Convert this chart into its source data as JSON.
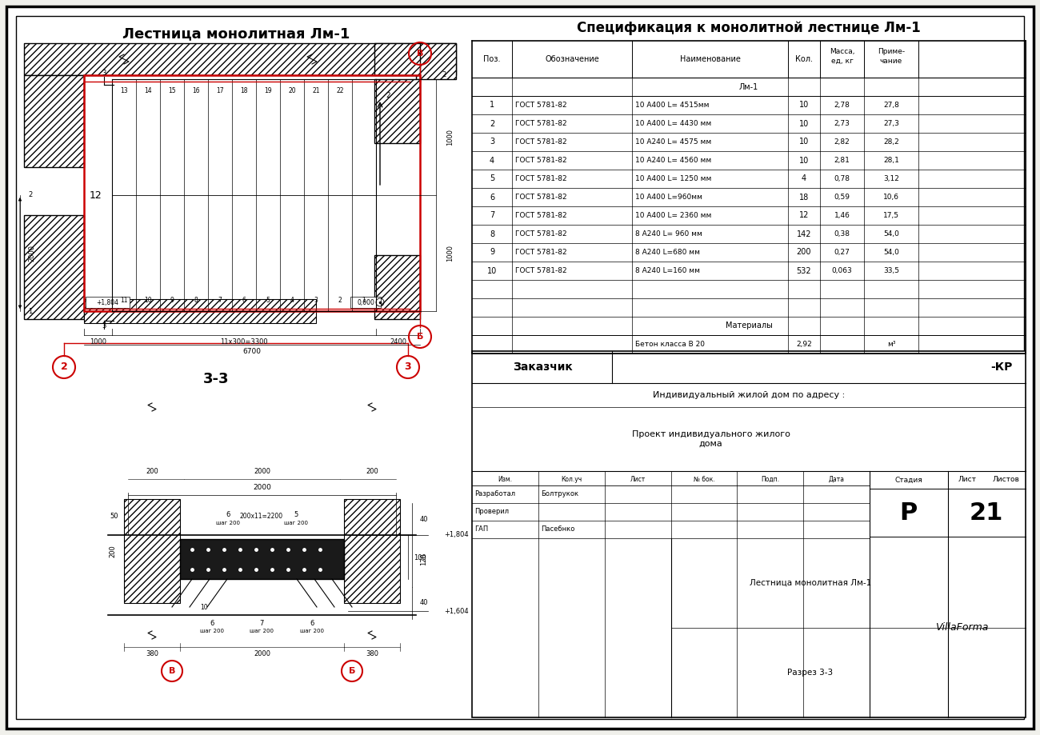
{
  "bg_color": "#f0f0eb",
  "white": "#ffffff",
  "black": "#000000",
  "red": "#cc0000",
  "gray_dark": "#2a2a2a",
  "title_lm1": "Лестница монолитная Лм-1",
  "title_spec": "Спецификация к монолитной лестнице Лм-1",
  "title_33": "3-3",
  "spec_rows": [
    [
      "1",
      "ГОСТ 5781-82",
      "10 А400 L= 4515мм",
      "10",
      "2,78",
      "27,8"
    ],
    [
      "2",
      "ГОСТ 5781-82",
      "10 А400 L= 4430 мм",
      "10",
      "2,73",
      "27,3"
    ],
    [
      "3",
      "ГОСТ 5781-82",
      "10 А240 L= 4575 мм",
      "10",
      "2,82",
      "28,2"
    ],
    [
      "4",
      "ГОСТ 5781-82",
      "10 А240 L= 4560 мм",
      "10",
      "2,81",
      "28,1"
    ],
    [
      "5",
      "ГОСТ 5781-82",
      "10 А400 L= 1250 мм",
      "4",
      "0,78",
      "3,12"
    ],
    [
      "6",
      "ГОСТ 5781-82",
      "10 А400 L=960мм",
      "18",
      "0,59",
      "10,6"
    ],
    [
      "7",
      "ГОСТ 5781-82",
      "10 А400 L= 2360 мм",
      "12",
      "1,46",
      "17,5"
    ],
    [
      "8",
      "ГОСТ 5781-82",
      "8 А240 L= 960 мм",
      "142",
      "0,38",
      "54,0"
    ],
    [
      "9",
      "ГОСТ 5781-82",
      "8 А240 L=680 мм",
      "200",
      "0,27",
      "54,0"
    ],
    [
      "10",
      "ГОСТ 5781-82",
      "8 А240 L=160 мм",
      "532",
      "0,063",
      "33,5"
    ]
  ],
  "spec_section": "Лм-1",
  "spec_materials_label": "Материалы",
  "stamp_customer": "Заказчик",
  "stamp_customer_val": "-КР",
  "stamp_house": "Индивидуальный жилой дом по адресу :",
  "stamp_project": "Проект индивидуального жилого\nдома",
  "stamp_stage": "Р",
  "stamp_sheet": "21",
  "stamp_title1": "Лестница монолитная Лм-1",
  "stamp_title2": "Разрез 3-3",
  "stamp_firm": "VillaForma",
  "stamp_razrabot": "Разработал",
  "stamp_razrabot_val": "Болтрукок",
  "stamp_proveril": "Проверил",
  "stamp_gip": "ГАП",
  "stamp_gip_val": "Пасебнко",
  "stamp_stadia": "Стадия",
  "stamp_list_lbl": "Лист",
  "stamp_listov": "Листов",
  "sig_headers": [
    "Изм.",
    "Кол.уч",
    "Лист",
    "№ бок.",
    "Подп.",
    "Дата"
  ]
}
